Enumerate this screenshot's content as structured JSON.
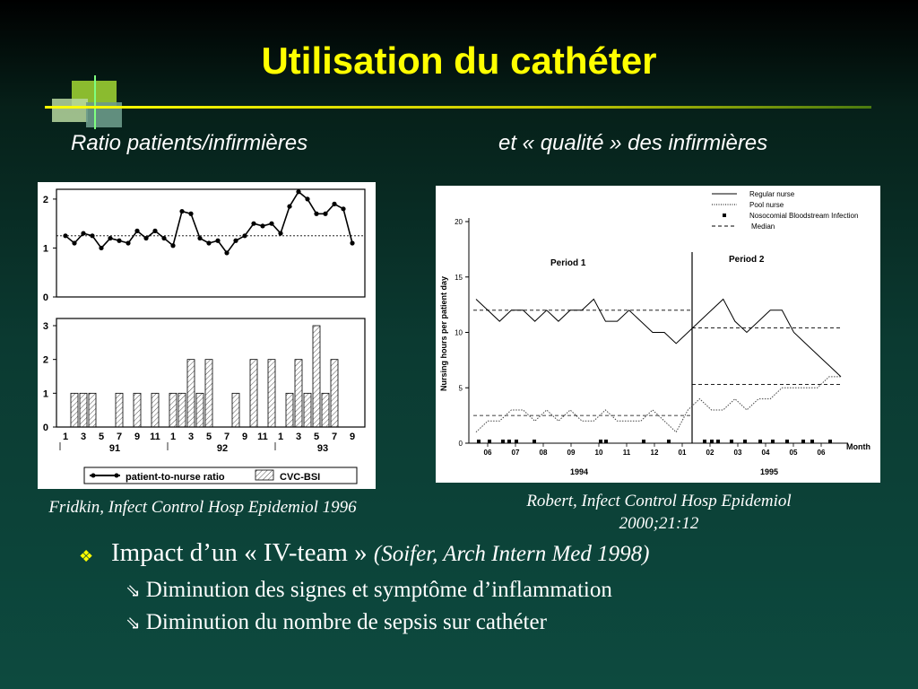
{
  "slide": {
    "title": "Utilisation du cathéter",
    "subtitle_left": "Ratio patients/infirmières",
    "subtitle_right": "et « qualité » des infirmières",
    "citation_left": "Fridkin, Infect Control Hosp Epidemiol 1996",
    "citation_right_line1": "Robert, Infect Control Hosp Epidemiol",
    "citation_right_line2": "2000;21:12",
    "bullets": {
      "main": "Impact d’un « IV-team » ",
      "main_ref": "(Soifer, Arch Intern Med 1998)",
      "subs": [
        "Diminution des signes et symptôme d’inflammation",
        "Diminution du nombre de sepsis sur cathéter"
      ]
    },
    "colors": {
      "title": "#ffff00",
      "text": "#ffffff",
      "rule": "#ffff00"
    }
  },
  "chart_data": [
    {
      "type": "line",
      "series": [
        {
          "name": "patient-to-nurse ratio",
          "values": [
            1.25,
            1.1,
            1.3,
            1.25,
            1.0,
            1.2,
            1.15,
            1.1,
            1.35,
            1.2,
            1.35,
            1.2,
            1.05,
            1.75,
            1.7,
            1.2,
            1.1,
            1.15,
            0.9,
            1.15,
            1.25,
            1.5,
            1.45,
            1.5,
            1.3,
            1.85,
            2.15,
            2.0,
            1.7,
            1.7,
            1.9,
            1.8,
            1.1
          ]
        }
      ],
      "yticks": [
        "0",
        "1",
        "2"
      ],
      "ylim": [
        0,
        2.2
      ],
      "reference_line": 1.25
    },
    {
      "type": "bar",
      "series": [
        {
          "name": "CVC-BSI",
          "values": [
            0,
            1,
            1,
            1,
            0,
            0,
            1,
            0,
            1,
            0,
            1,
            0,
            1,
            1,
            2,
            1,
            2,
            0,
            0,
            1,
            0,
            2,
            0,
            2,
            0,
            1,
            2,
            1,
            3,
            1,
            2,
            0,
            0
          ]
        }
      ],
      "x_tick_labels": [
        "1",
        "3",
        "5",
        "7",
        "9",
        "11",
        "1",
        "3",
        "5",
        "7",
        "9",
        "11",
        "1",
        "3",
        "5",
        "7",
        "9"
      ],
      "x_year_labels": [
        "91",
        "92",
        "93"
      ],
      "yticks": [
        "0",
        "1",
        "2",
        "3"
      ],
      "ylim": [
        0,
        3
      ],
      "legend": [
        "patient-to-nurse ratio",
        "CVC-BSI"
      ]
    },
    {
      "type": "line",
      "ylabel": "Nursing hours per patient day",
      "yticks": [
        "0",
        "5",
        "10",
        "15",
        "20"
      ],
      "ylim": [
        0,
        20
      ],
      "x_tick_labels": [
        "06",
        "07",
        "08",
        "09",
        "10",
        "11",
        "12",
        "01",
        "02",
        "03",
        "04",
        "05",
        "06"
      ],
      "xlabel": "Month",
      "x_year_labels": [
        "1994",
        "1995"
      ],
      "annotations": [
        "Period  1",
        "Period  2"
      ],
      "legend": [
        "Regular nurse",
        "Pool nurse",
        "Nosocomial Bloodstream Infection",
        "Median"
      ],
      "series": [
        {
          "name": "Regular nurse",
          "values": [
            13,
            12,
            11,
            12,
            12,
            11,
            12,
            11,
            12,
            12,
            13,
            11,
            11,
            12,
            11,
            10,
            10,
            9,
            10,
            11,
            12,
            13,
            11,
            10,
            11,
            12,
            12,
            10,
            9,
            8,
            7,
            6
          ]
        },
        {
          "name": "Pool nurse",
          "values": [
            1,
            2,
            2,
            3,
            3,
            2,
            3,
            2,
            3,
            2,
            2,
            3,
            2,
            2,
            2,
            3,
            2,
            1,
            3,
            4,
            3,
            3,
            4,
            3,
            4,
            4,
            5,
            5,
            5,
            5,
            6,
            6
          ]
        },
        {
          "name": "Median",
          "values": [
            12.0,
            2.5,
            10.4,
            5.3
          ]
        }
      ]
    }
  ]
}
